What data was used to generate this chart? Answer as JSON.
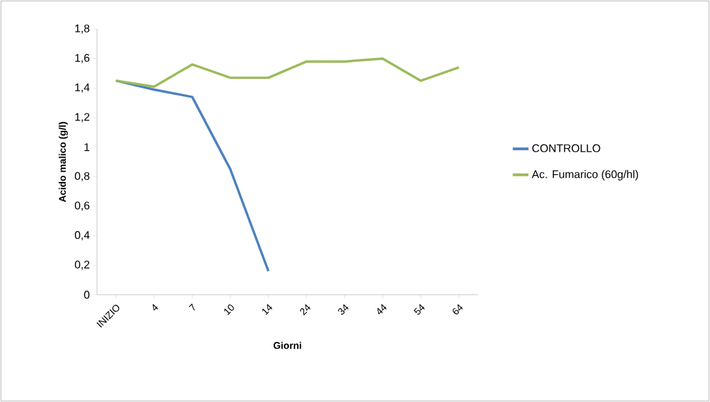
{
  "chart_data": {
    "type": "line",
    "xlabel": "Giorni",
    "ylabel": "Acido malico (g/l)",
    "categories": [
      "INIZIO",
      "4",
      "7",
      "10",
      "14",
      "24",
      "34",
      "44",
      "54",
      "64"
    ],
    "series": [
      {
        "name": "CONTROLLO",
        "color": "#4f81bd",
        "values": [
          1.45,
          1.39,
          1.34,
          0.85,
          0.16,
          null,
          null,
          null,
          null,
          null
        ]
      },
      {
        "name": "Ac. Fumarico (60g/hl)",
        "color": "#9bbb59",
        "values": [
          1.45,
          1.41,
          1.56,
          1.47,
          1.47,
          1.58,
          1.58,
          1.6,
          1.45,
          1.54
        ]
      }
    ],
    "ylim": [
      0,
      1.8
    ],
    "yticks": [
      0,
      {
        "value": 0.2,
        "label": "0,2"
      },
      {
        "value": 0.4,
        "label": "0,4"
      },
      {
        "value": 0.6,
        "label": "0,6"
      },
      {
        "value": 0.8,
        "label": "0,8"
      },
      1,
      {
        "value": 1.2,
        "label": "1,2"
      },
      {
        "value": 1.4,
        "label": "1,4"
      },
      {
        "value": 1.6,
        "label": "1,6"
      },
      {
        "value": 1.8,
        "label": "1,8"
      }
    ],
    "legend": "right",
    "grid": false,
    "marker": "none",
    "line_style": "solid"
  }
}
